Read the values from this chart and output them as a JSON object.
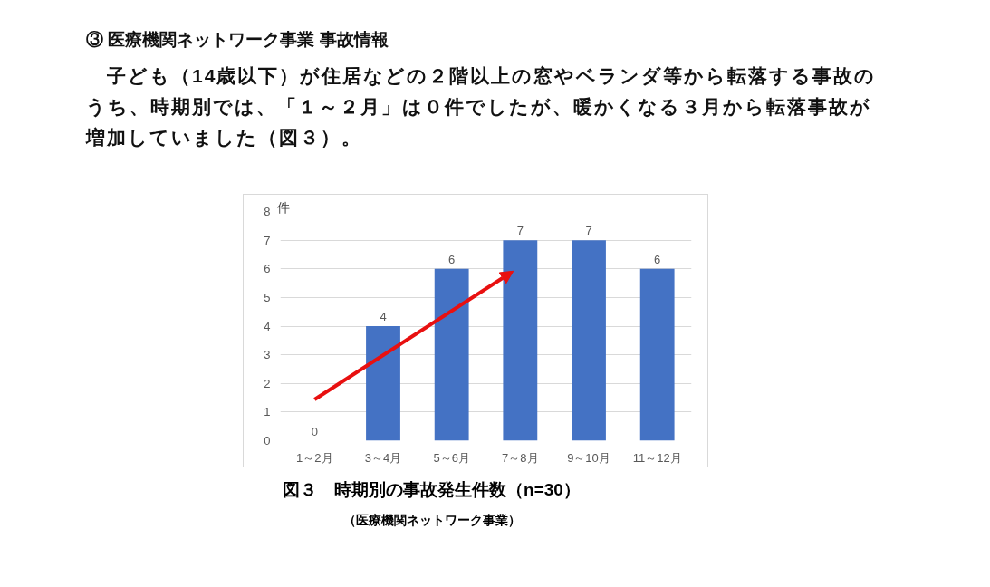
{
  "chart_data": {
    "type": "bar",
    "title": "図３　時期別の事故発生件数（n=30）",
    "subtitle": "（医療機関ネットワーク事業）",
    "ylabel": "件",
    "annotations": [
      "③ 医療機関ネットワーク事業 事故情報",
      "　子ども（14歳以下）が住居などの２階以上の窓やベランダ等から転落する事故のうち、時期別では、「１～２月」は０件でしたが、暖かくなる３月から転落事故が増加していました（図３）。"
    ],
    "categories": [
      "1～2月",
      "3～4月",
      "5～6月",
      "7～8月",
      "9～10月",
      "11～12月"
    ],
    "values": [
      0,
      4,
      6,
      7,
      7,
      6
    ],
    "color": "#4472c4",
    "ylim": [
      0,
      8
    ],
    "yticks": [
      0,
      1,
      2,
      3,
      4,
      5,
      6,
      7,
      8
    ],
    "grid": "y",
    "data_labels": true
  }
}
